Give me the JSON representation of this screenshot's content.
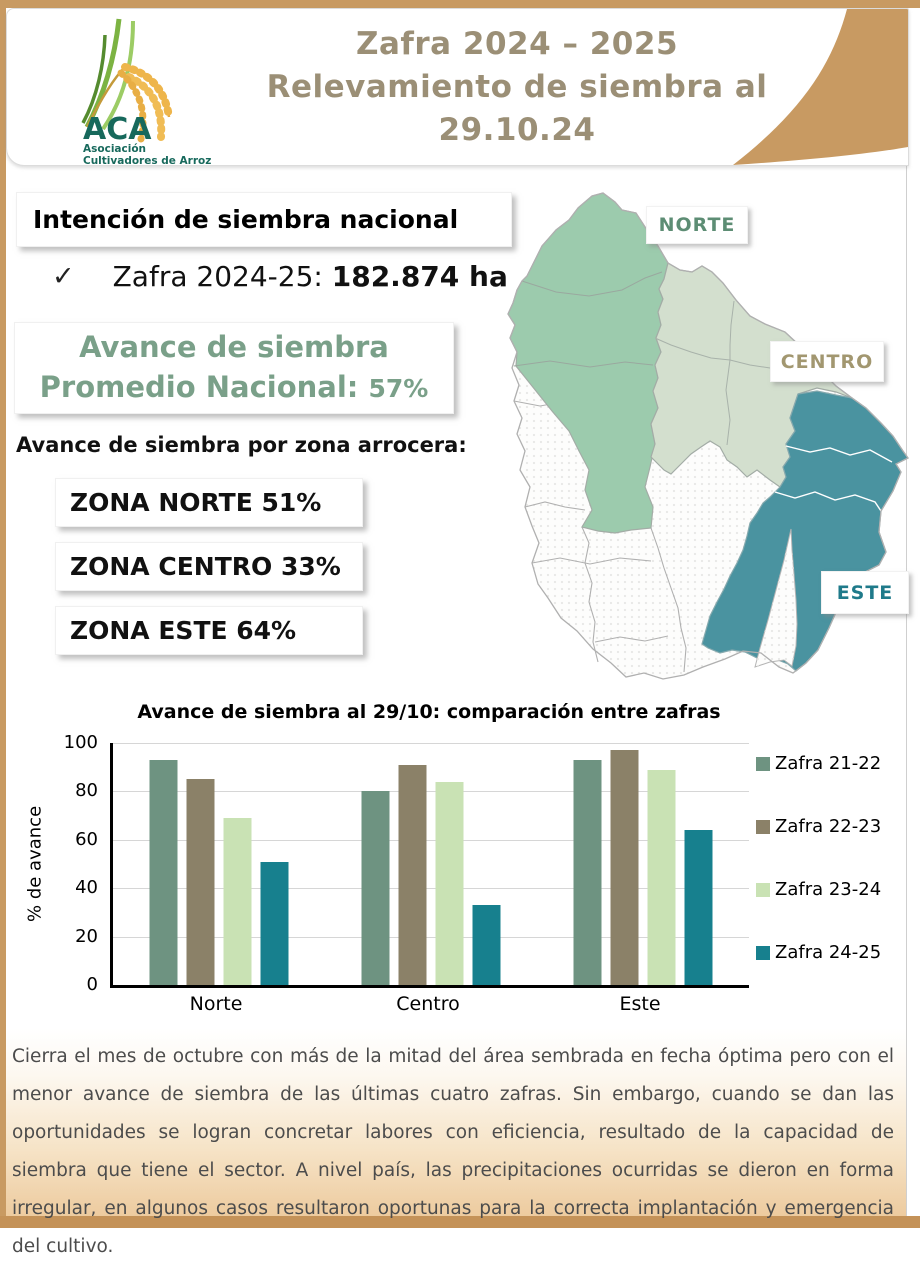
{
  "header": {
    "title_line1": "Zafra 2024 – 2025",
    "title_line2": "Relevamiento de siembra al",
    "title_line3": "29.10.24",
    "logo": {
      "acronym": "ACA",
      "name_line1": "Asociación",
      "name_line2": "Cultivadores de Arroz",
      "teal": "#17695c"
    }
  },
  "intent": {
    "title": "Intención de siembra nacional",
    "check_glyph": "✓",
    "check_label": "Zafra 2024-25:",
    "check_value": "182.874 ha",
    "avance_line1": "Avance de siembra",
    "avance_line2": "Promedio Nacional:",
    "avance_value": "57%",
    "green_accent": "#7aa089"
  },
  "zones_section": {
    "heading": "Avance de siembra por zona arrocera:",
    "items": [
      {
        "label": "ZONA NORTE 51%"
      },
      {
        "label": "ZONA CENTRO 33%"
      },
      {
        "label": "ZONA ESTE 64%"
      }
    ]
  },
  "map": {
    "zone_fills": {
      "norte": "#9ccbad",
      "centro": "#d3dfce",
      "este": "#4a93a0"
    },
    "labels": [
      {
        "text": "NORTE",
        "color": "#5d8d74"
      },
      {
        "text": "CENTRO",
        "color": "#a29770"
      },
      {
        "text": "ESTE",
        "color": "#1f7a8a"
      }
    ]
  },
  "chart_data": {
    "type": "bar",
    "title": "Avance de siembra al 29/10: comparación entre zafras",
    "categories": [
      "Norte",
      "Centro",
      "Este"
    ],
    "series": [
      {
        "name": "Zafra 21-22",
        "color": "#6e9381",
        "values": [
          93,
          80,
          93
        ]
      },
      {
        "name": "Zafra 22-23",
        "color": "#8b8168",
        "values": [
          85,
          91,
          97
        ]
      },
      {
        "name": "Zafra 23-24",
        "color": "#c9e2b4",
        "values": [
          69,
          84,
          89
        ]
      },
      {
        "name": "Zafra 24-25",
        "color": "#17808e",
        "values": [
          51,
          33,
          64
        ]
      }
    ],
    "xlabel": "",
    "ylabel": "% de avance",
    "ylim": [
      0,
      100
    ],
    "yticks": [
      0,
      20,
      40,
      60,
      80,
      100
    ],
    "grid": true,
    "legend_position": "right"
  },
  "footer": {
    "text": "Cierra el mes de octubre con más de la mitad del área sembrada en fecha óptima pero con el menor avance de siembra de las últimas cuatro zafras. Sin embargo, cuando se dan las oportunidades se logran concretar labores con eficiencia, resultado de la capacidad de siembra que tiene el sector. A nivel país, las precipitaciones ocurridas se dieron en forma irregular, en algunos casos resultaron oportunas para la correcta implantación y emergencia del cultivo."
  },
  "colors": {
    "frame_tan": "#c89a62",
    "title_taupe": "#9b8f76",
    "map_dot_texture": "#e8e8e6",
    "map_border_gray": "#b0b0b0"
  }
}
